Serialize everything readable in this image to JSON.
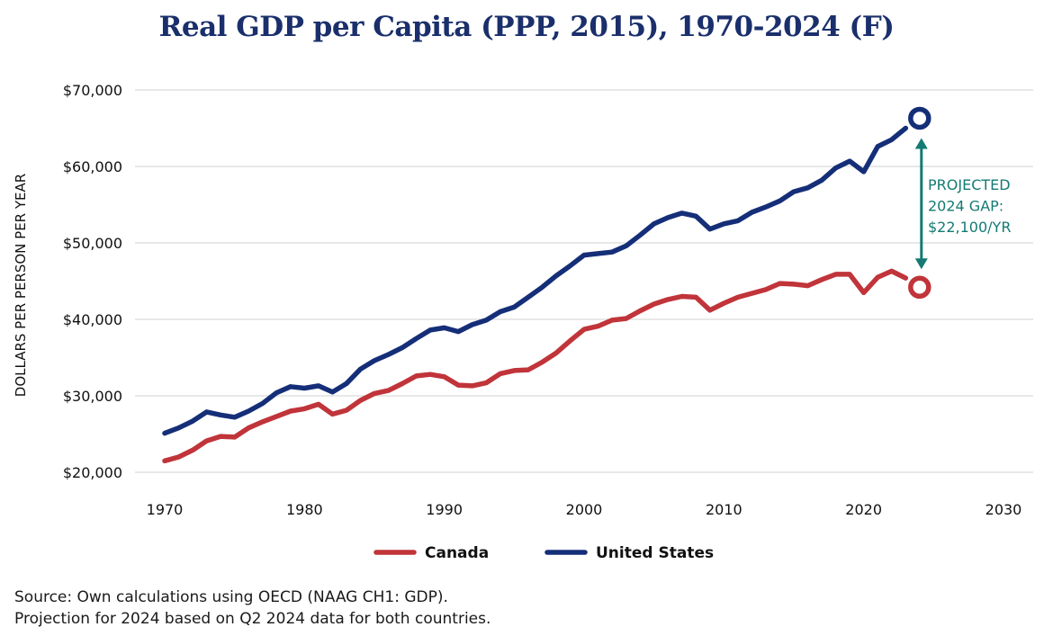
{
  "title": "Real GDP per Capita (PPP, 2015), 1970-2024 (F)",
  "source_lines": [
    "Source: Own calculations using OECD (NAAG CH1: GDP).",
    "Projection for 2024 based on Q2 2024 data for both countries."
  ],
  "colors": {
    "canada": "#c0343a",
    "united_states": "#152e78",
    "annotation": "#147a73",
    "grid": "#d9d9d9"
  },
  "chart_data": {
    "type": "line",
    "title": "Real GDP per Capita (PPP, 2015), 1970-2024 (F)",
    "xlabel": "",
    "ylabel": "DOLLARS PER PERSON PER YEAR",
    "xlim": [
      1970,
      2030
    ],
    "ylim": [
      20000,
      70000
    ],
    "x_ticks": [
      1970,
      1980,
      1990,
      2000,
      2010,
      2020,
      2030
    ],
    "x_tick_labels": [
      "1970",
      "1980",
      "1990",
      "2000",
      "2010",
      "2020",
      "2030"
    ],
    "y_ticks": [
      20000,
      30000,
      40000,
      50000,
      60000,
      70000
    ],
    "y_tick_labels": [
      "$20,000",
      "$30,000",
      "$40,000",
      "$50,000",
      "$60,000",
      "$70,000"
    ],
    "grid": "horizontal",
    "legend": {
      "position": "bottom",
      "entries": [
        "Canada",
        "United States"
      ]
    },
    "x": [
      1970,
      1971,
      1972,
      1973,
      1974,
      1975,
      1976,
      1977,
      1978,
      1979,
      1980,
      1981,
      1982,
      1983,
      1984,
      1985,
      1986,
      1987,
      1988,
      1989,
      1990,
      1991,
      1992,
      1993,
      1994,
      1995,
      1996,
      1997,
      1998,
      1999,
      2000,
      2001,
      2002,
      2003,
      2004,
      2005,
      2006,
      2007,
      2008,
      2009,
      2010,
      2011,
      2012,
      2013,
      2014,
      2015,
      2016,
      2017,
      2018,
      2019,
      2020,
      2021,
      2022,
      2023
    ],
    "series": [
      {
        "name": "Canada",
        "values": [
          21500,
          22000,
          22900,
          24100,
          24700,
          24600,
          25800,
          26600,
          27300,
          28000,
          28300,
          28900,
          27600,
          28100,
          29400,
          30300,
          30700,
          31600,
          32600,
          32800,
          32500,
          31400,
          31300,
          31700,
          32900,
          33300,
          33400,
          34400,
          35600,
          37200,
          38700,
          39100,
          39900,
          40100,
          41100,
          42000,
          42600,
          43000,
          42900,
          41200,
          42100,
          42900,
          43400,
          43900,
          44700,
          44600,
          44400,
          45200,
          45900,
          45900,
          43500,
          45500,
          46300,
          45400
        ],
        "projection": {
          "x": 2024,
          "value": 44200
        }
      },
      {
        "name": "United States",
        "values": [
          25100,
          25800,
          26700,
          27900,
          27500,
          27200,
          28000,
          29000,
          30400,
          31200,
          31000,
          31300,
          30500,
          31600,
          33500,
          34600,
          35400,
          36300,
          37500,
          38600,
          38900,
          38400,
          39300,
          39900,
          41000,
          41600,
          42900,
          44200,
          45700,
          47000,
          48400,
          48600,
          48800,
          49600,
          51000,
          52500,
          53300,
          53900,
          53500,
          51800,
          52500,
          52900,
          54000,
          54700,
          55500,
          56700,
          57200,
          58200,
          59800,
          60700,
          59300,
          62600,
          63500,
          65000
        ],
        "projection": {
          "x": 2024,
          "value": 66300
        }
      }
    ],
    "annotation": {
      "lines": [
        "PROJECTED",
        "2024 GAP:",
        "$22,100/YR"
      ],
      "x": 2024,
      "from": 44200,
      "to": 66300
    }
  }
}
